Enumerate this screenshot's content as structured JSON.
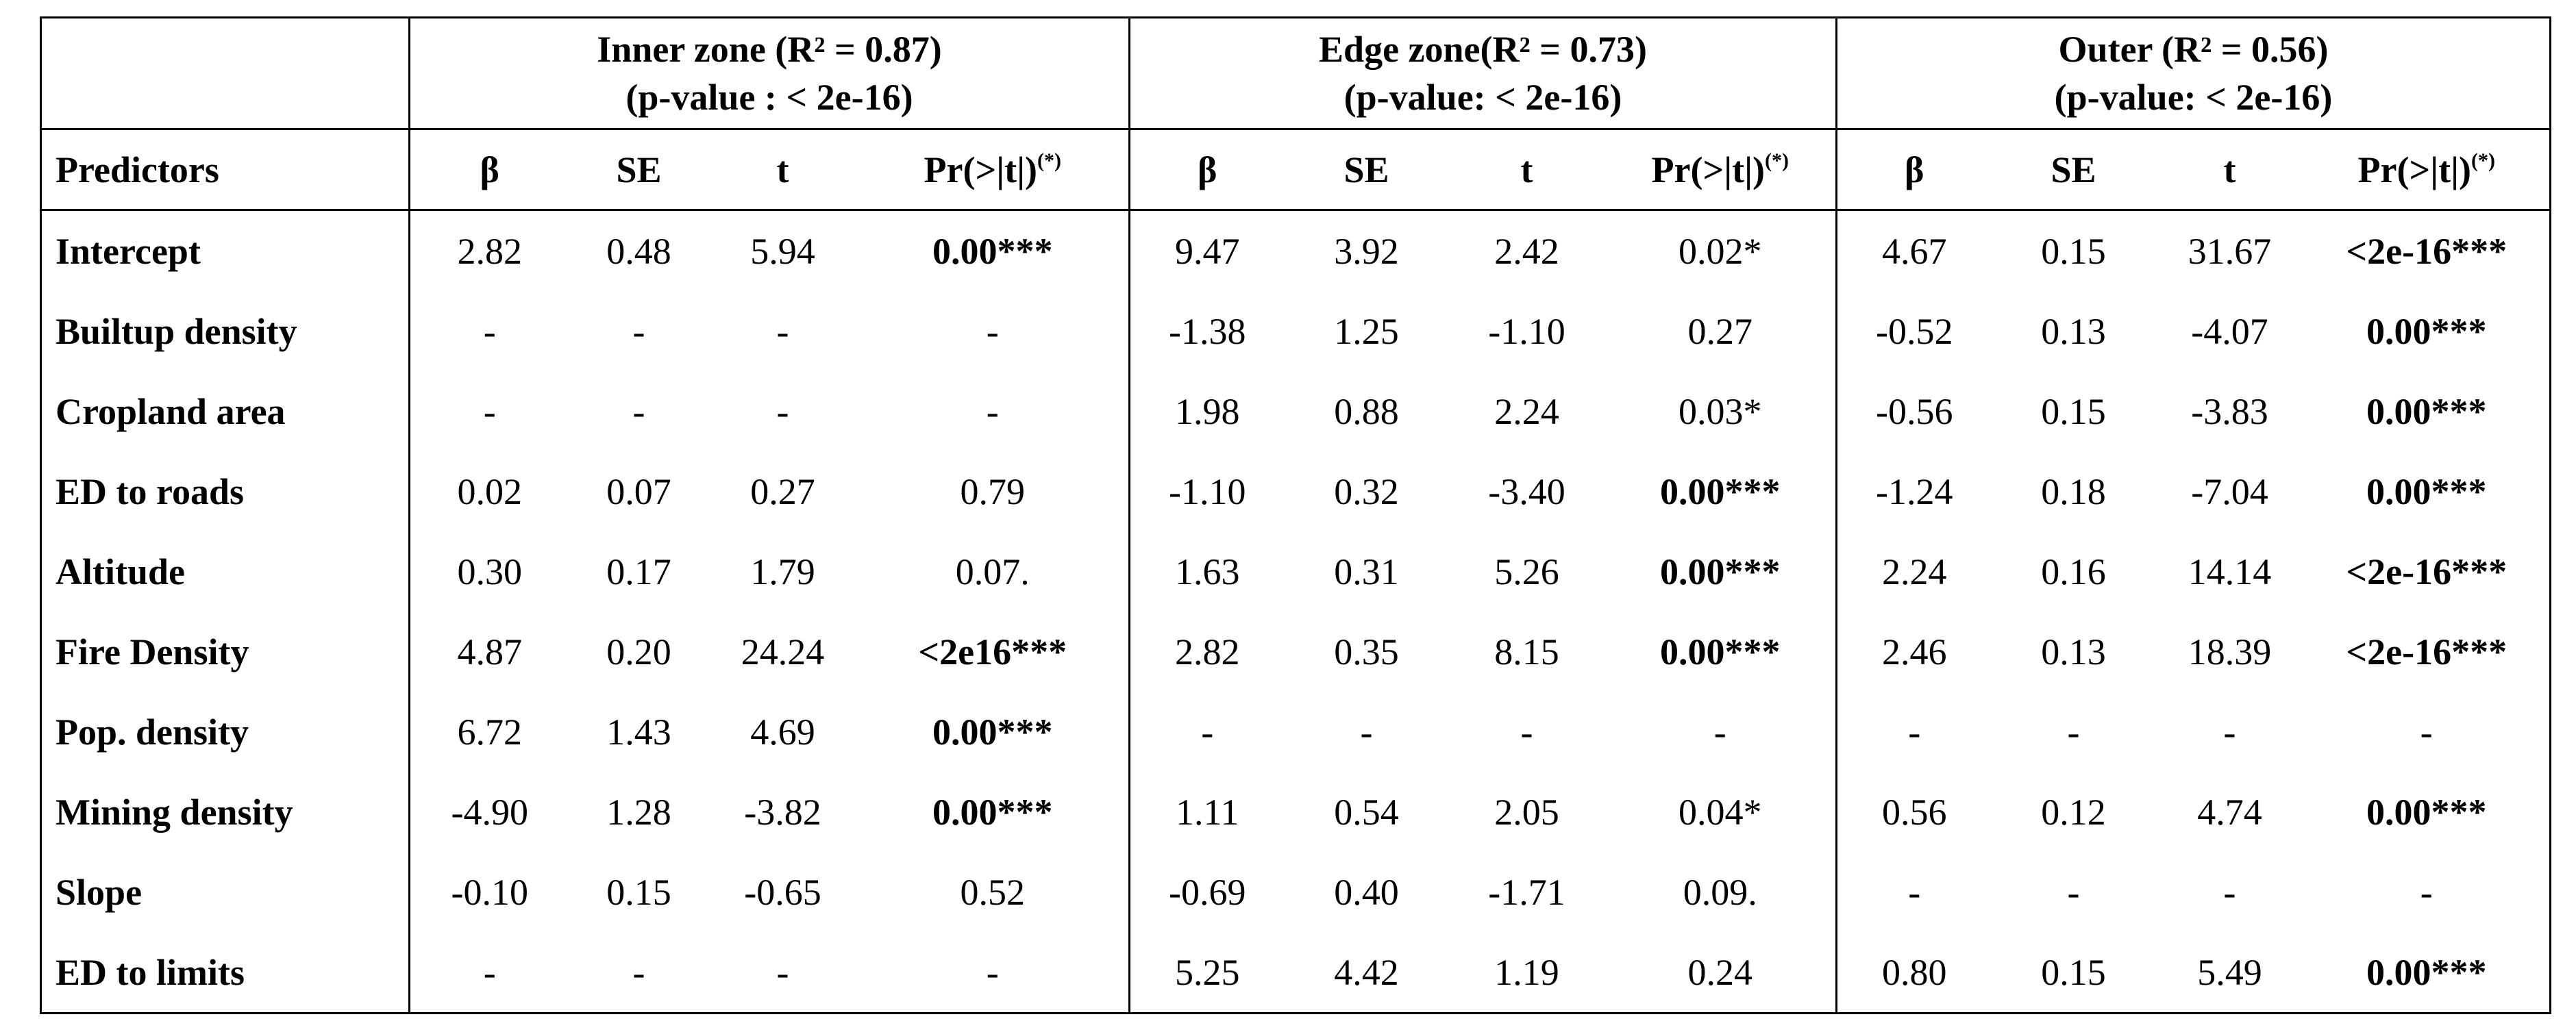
{
  "header": {
    "groups": [
      {
        "line1": "Inner zone (R² = 0.87)",
        "line2": "(p-value : < 2e-16)"
      },
      {
        "line1": "Edge zone(R² = 0.73)",
        "line2": "(p-value: < 2e-16)"
      },
      {
        "line1": "Outer (R² = 0.56)",
        "line2": "(p-value: < 2e-16)"
      }
    ],
    "columns": [
      "Predictors",
      "β",
      "SE",
      "t",
      "Pr(>|t|)",
      "β",
      "SE",
      "t",
      "Pr(>|t|)",
      "β",
      "SE",
      "t",
      "Pr(>|t|)"
    ],
    "p_superscript": "(*)"
  },
  "table": {
    "rows": [
      [
        "Intercept",
        "2.82",
        "0.48",
        "5.94",
        "0.00***",
        "9.47",
        "3.92",
        "2.42",
        "0.02*",
        "4.67",
        "0.15",
        "31.67",
        "<2e-16***"
      ],
      [
        "Builtup density",
        "-",
        "-",
        "-",
        "-",
        "-1.38",
        "1.25",
        "-1.10",
        "0.27",
        "-0.52",
        "0.13",
        "-4.07",
        "0.00***"
      ],
      [
        "Cropland area",
        "-",
        "-",
        "-",
        "-",
        "1.98",
        "0.88",
        "2.24",
        "0.03*",
        "-0.56",
        "0.15",
        "-3.83",
        "0.00***"
      ],
      [
        "ED to roads",
        "0.02",
        "0.07",
        "0.27",
        "0.79",
        "-1.10",
        "0.32",
        "-3.40",
        "0.00***",
        "-1.24",
        "0.18",
        "-7.04",
        "0.00***"
      ],
      [
        "Altitude",
        "0.30",
        "0.17",
        "1.79",
        "0.07.",
        "1.63",
        "0.31",
        "5.26",
        "0.00***",
        "2.24",
        "0.16",
        "14.14",
        "<2e-16***"
      ],
      [
        "Fire Density",
        "4.87",
        "0.20",
        "24.24",
        "<2e16***",
        "2.82",
        "0.35",
        "8.15",
        "0.00***",
        "2.46",
        "0.13",
        "18.39",
        "<2e-16***"
      ],
      [
        "Pop. density",
        "6.72",
        "1.43",
        "4.69",
        "0.00***",
        "-",
        "-",
        "-",
        "-",
        "-",
        "-",
        "-",
        "-"
      ],
      [
        "Mining density",
        "-4.90",
        "1.28",
        "-3.82",
        "0.00***",
        "1.11",
        "0.54",
        "2.05",
        "0.04*",
        "0.56",
        "0.12",
        "4.74",
        "0.00***"
      ],
      [
        "Slope",
        "-0.10",
        "0.15",
        "-0.65",
        "0.52",
        "-0.69",
        "0.40",
        "-1.71",
        "0.09.",
        "-",
        "-",
        "-",
        "-"
      ],
      [
        "ED to limits",
        "-",
        "-",
        "-",
        "-",
        "5.25",
        "4.42",
        "1.19",
        "0.24",
        "0.80",
        "0.15",
        "5.49",
        "0.00***"
      ]
    ]
  }
}
